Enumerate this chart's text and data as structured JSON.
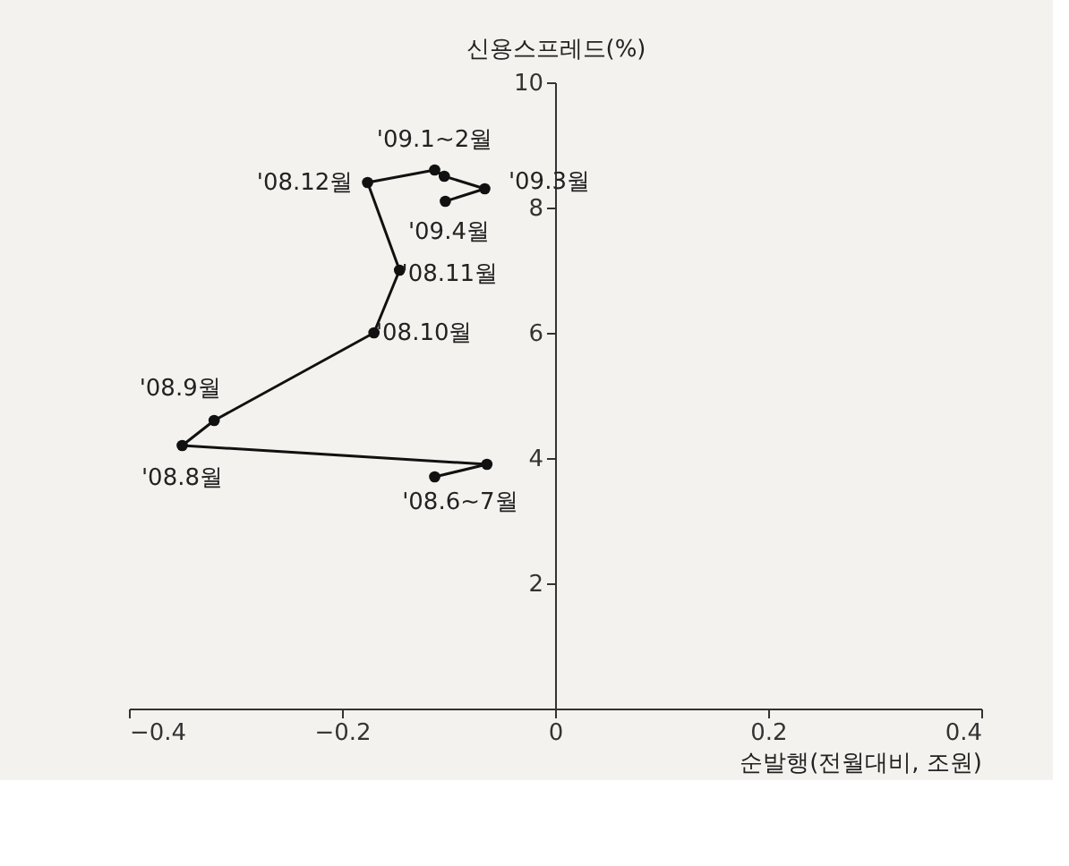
{
  "chart_data": {
    "type": "line",
    "xlabel": "순발행(전월대비, 조원)",
    "ylabel": "신용스프레드(%)",
    "x": [
      -0.113,
      -0.064,
      -0.35,
      -0.32,
      -0.17,
      -0.146,
      -0.176,
      -0.113,
      -0.104,
      -0.066,
      -0.103
    ],
    "series": [
      {
        "color": "#111111",
        "values": [
          3.7,
          3.9,
          4.2,
          4.6,
          6.0,
          7.0,
          8.4,
          8.6,
          8.5,
          8.3,
          8.1
        ]
      }
    ],
    "xlim": [
      -0.4,
      0.4
    ],
    "xticks": [
      -0.4,
      -0.2,
      0,
      0.2,
      0.4
    ],
    "ylim": [
      0,
      10
    ],
    "yticks": [
      {
        "value": 0,
        "label": null
      },
      2,
      4,
      6,
      8,
      10
    ],
    "marker": "circle",
    "line_style": "solid",
    "grid": false,
    "annotations": [
      {
        "text": "'09.1~2월",
        "x": -0.113,
        "y": 8.6
      },
      {
        "text": "'08.12월",
        "x": -0.176,
        "y": 8.4
      },
      {
        "text": "'09.3월",
        "x": -0.066,
        "y": 8.3
      },
      {
        "text": "'09.4월",
        "x": -0.103,
        "y": 8.1
      },
      {
        "text": "'08.11월",
        "x": -0.146,
        "y": 7.0
      },
      {
        "text": "'08.10월",
        "x": -0.17,
        "y": 6.0
      },
      {
        "text": "'08.9월",
        "x": -0.32,
        "y": 4.6
      },
      {
        "text": "'08.8월",
        "x": -0.35,
        "y": 4.2
      },
      {
        "text": "'08.6~7월",
        "x": -0.064,
        "y": 3.9
      }
    ]
  }
}
